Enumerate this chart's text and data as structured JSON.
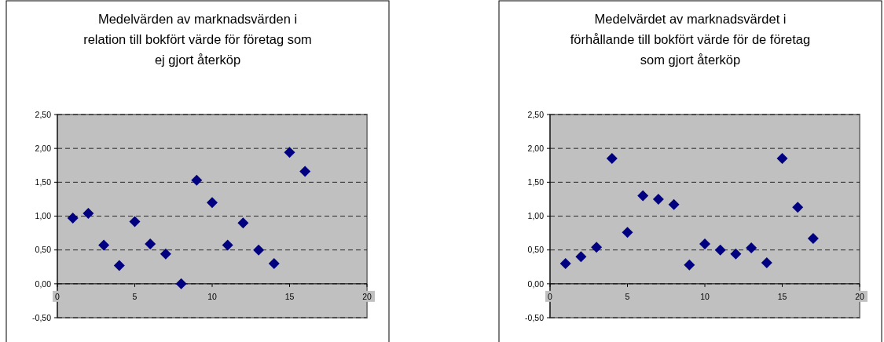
{
  "chart_data": [
    {
      "type": "scatter",
      "title": "Medelvärden av marknadsvärden i\nrelation till bokfört värde för företag som\nej gjort återköp",
      "x": [
        1,
        2,
        3,
        4,
        5,
        6,
        7,
        8,
        9,
        10,
        11,
        12,
        13,
        14,
        15,
        16
      ],
      "series": [
        {
          "color": "#000080",
          "values": [
            0.97,
            1.04,
            0.57,
            0.27,
            0.92,
            0.59,
            0.44,
            0.0,
            1.53,
            1.2,
            0.57,
            0.9,
            0.5,
            0.3,
            1.94,
            1.66
          ]
        }
      ],
      "xlim": [
        0,
        20
      ],
      "xticks": [
        0,
        5,
        10,
        15,
        20
      ],
      "ylim": [
        -0.5,
        2.5
      ],
      "yticks": [
        {
          "value": -0.5,
          "label": "-0,50"
        },
        {
          "value": 0,
          "label": "0,00"
        },
        {
          "value": 0.5,
          "label": "0,50"
        },
        {
          "value": 1,
          "label": "1,00"
        },
        {
          "value": 1.5,
          "label": "1,50"
        },
        {
          "value": 2,
          "label": "2,00"
        },
        {
          "value": 2.5,
          "label": "2,50"
        }
      ],
      "grid": "y",
      "marker": "diamond"
    },
    {
      "type": "scatter",
      "title": "Medelvärdet av marknadsvärdet i\nförhållande till bokfört värde för de företag\nsom gjort återköp",
      "x": [
        1,
        2,
        3,
        4,
        5,
        6,
        7,
        8,
        9,
        10,
        11,
        12,
        13,
        14,
        15,
        16,
        17
      ],
      "series": [
        {
          "color": "#000080",
          "values": [
            0.3,
            0.4,
            0.54,
            1.85,
            0.76,
            1.3,
            1.25,
            1.17,
            0.28,
            0.59,
            0.5,
            0.44,
            0.53,
            0.31,
            1.85,
            1.13,
            0.67
          ]
        }
      ],
      "xlim": [
        0,
        20
      ],
      "xticks": [
        0,
        5,
        10,
        15,
        20
      ],
      "ylim": [
        -0.5,
        2.5
      ],
      "yticks": [
        {
          "value": -0.5,
          "label": "-0,50"
        },
        {
          "value": 0,
          "label": "0,00"
        },
        {
          "value": 0.5,
          "label": "0,50"
        },
        {
          "value": 1,
          "label": "1,00"
        },
        {
          "value": 1.5,
          "label": "1,50"
        },
        {
          "value": 2,
          "label": "2,00"
        },
        {
          "value": 2.5,
          "label": "2,50"
        }
      ],
      "grid": "y",
      "marker": "diamond"
    }
  ]
}
